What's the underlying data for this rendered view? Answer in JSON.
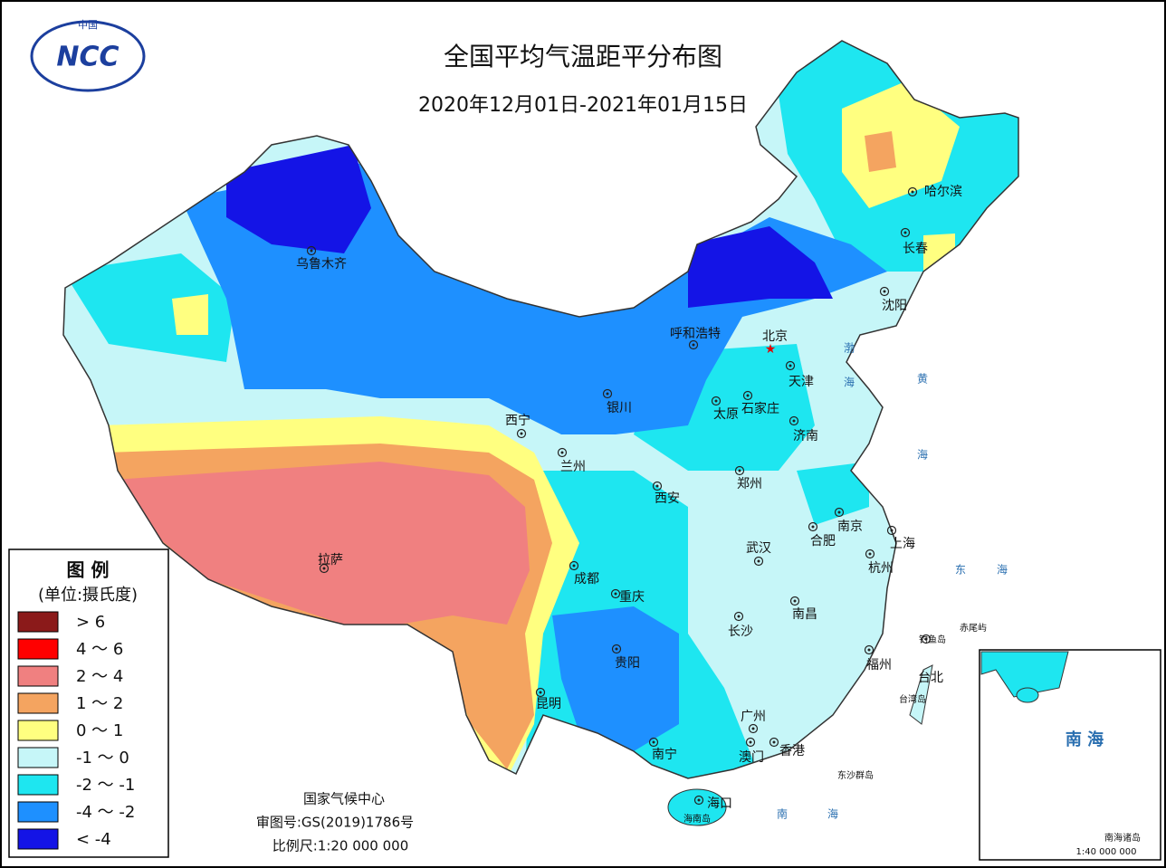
{
  "header": {
    "logo_top": "中国",
    "logo": "NCC",
    "title": "全国平均气温距平分布图",
    "subtitle": "2020年12月01日-2021年01月15日"
  },
  "legend": {
    "title": "图 例",
    "unit": "(单位:摄氏度)",
    "items": [
      {
        "label": "> 6",
        "color": "#8b1a1a"
      },
      {
        "label": "4 ～ 6",
        "color": "#ff0000"
      },
      {
        "label": "2 ～ 4",
        "color": "#f08080"
      },
      {
        "label": "1 ～ 2",
        "color": "#f4a460"
      },
      {
        "label": "0 ～ 1",
        "color": "#ffff80"
      },
      {
        "label": "-1 ～ 0",
        "color": "#c6f6f8"
      },
      {
        "label": "-2 ～ -1",
        "color": "#1ee6f0"
      },
      {
        "label": "-4 ～ -2",
        "color": "#1e90ff"
      },
      {
        "label": "< -4",
        "color": "#1414e6"
      }
    ]
  },
  "cities": [
    "乌鲁木齐",
    "呼和浩特",
    "北京",
    "天津",
    "石家庄",
    "太原",
    "济南",
    "银川",
    "西宁",
    "兰州",
    "郑州",
    "西安",
    "南京",
    "合肥",
    "上海",
    "武汉",
    "杭州",
    "成都",
    "重庆",
    "拉萨",
    "长沙",
    "南昌",
    "贵阳",
    "福州",
    "台北",
    "昆明",
    "广州",
    "澳门",
    "香港",
    "南宁",
    "海口",
    "哈尔滨",
    "长春",
    "沈阳"
  ],
  "seas": [
    "渤海",
    "黄海",
    "东海",
    "南海"
  ],
  "islands": [
    "钓鱼岛",
    "赤尾屿",
    "台湾岛",
    "东沙群岛",
    "海南岛"
  ],
  "inset": {
    "sea": "南 海",
    "name": "南海诸岛",
    "scale": "1:40 000 000"
  },
  "footer": [
    "国家气候中心",
    "审图号:GS(2019)1786号",
    "比例尺:1:20 000 000"
  ]
}
